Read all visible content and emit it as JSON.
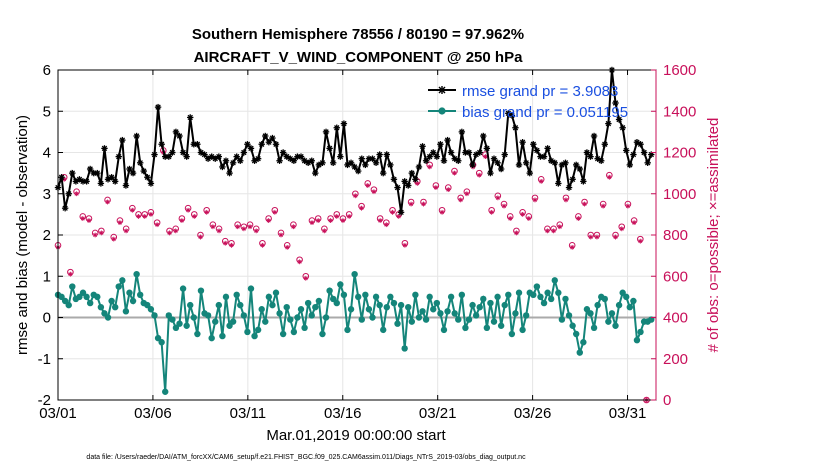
{
  "chart_data": {
    "type": "line",
    "title": "Southern Hemisphere 78556 / 80190 = 97.962%",
    "subtitle": "AIRCRAFT_V_WIND_COMPONENT @ 250 hPa",
    "xlabel": "Mar.01,2019 00:00:00 start",
    "ylabel": "rmse and bias (model - observation)",
    "y2label": "# of obs: o=possible; ×=assimilated",
    "xlim": [
      0,
      31.5
    ],
    "ylim": [
      -2,
      6
    ],
    "y2lim": [
      0,
      1600
    ],
    "x_ticks": [
      0,
      5,
      10,
      15,
      20,
      25,
      30
    ],
    "x_tick_labels": [
      "03/01",
      "03/06",
      "03/11",
      "03/16",
      "03/21",
      "03/26",
      "03/31"
    ],
    "y_ticks": [
      -2,
      -1,
      0,
      1,
      2,
      3,
      4,
      5,
      6
    ],
    "y2_ticks": [
      0,
      200,
      400,
      600,
      800,
      1000,
      1200,
      1400,
      1600
    ],
    "colors": {
      "rmse": "#000000",
      "bias": "#14857a",
      "obs": "#c8105a",
      "legend_text": "#1a4fe0",
      "zero_line": "#aaaaaa"
    },
    "footnote": "data file: /Users/raeder/DAI/ATM_forcXX/CAM6_setup/f.e21.FHIST_BGC.f09_025.CAM6assim.011/Diags_NTrS_2019-03/obs_diag_output.nc",
    "series": [
      {
        "name": "rmse grand pr = 3.9083",
        "values": [
          3.15,
          3.4,
          2.65,
          3.0,
          3.5,
          3.3,
          3.35,
          3.3,
          3.3,
          3.6,
          3.5,
          3.5,
          3.25,
          4.1,
          3.35,
          3.4,
          3.3,
          3.9,
          4.3,
          3.2,
          3.6,
          3.5,
          4.4,
          3.75,
          3.55,
          3.4,
          3.25,
          3.95,
          5.1,
          4.2,
          3.9,
          3.9,
          4.0,
          4.5,
          4.4,
          4.0,
          3.9,
          4.85,
          4.2,
          4.2,
          4.0,
          3.95,
          3.85,
          3.9,
          3.85,
          3.9,
          3.65,
          3.8,
          3.5,
          3.75,
          3.9,
          3.8,
          4.0,
          4.2,
          4.1,
          3.8,
          3.85,
          4.2,
          4.4,
          4.25,
          4.35,
          4.2,
          3.8,
          4.0,
          3.9,
          3.85,
          3.8,
          3.9,
          3.9,
          3.8,
          3.75,
          3.8,
          3.5,
          3.7,
          3.75,
          4.5,
          4.1,
          3.75,
          4.6,
          3.9,
          4.7,
          3.7,
          3.75,
          3.65,
          3.55,
          3.85,
          3.7,
          3.85,
          3.85,
          3.75,
          3.95,
          3.5,
          3.95,
          3.7,
          3.35,
          3.15,
          2.55,
          3.3,
          3.2,
          3.5,
          3.35,
          3.65,
          4.15,
          3.8,
          3.9,
          4.0,
          3.9,
          4.2,
          3.8,
          4.3,
          4.0,
          3.85,
          3.8,
          4.5,
          4.0,
          4.0,
          3.7,
          3.95,
          4.0,
          4.4,
          4.1,
          3.5,
          3.85,
          3.75,
          3.6,
          3.95,
          4.95,
          4.9,
          4.6,
          3.7,
          4.25,
          3.75,
          3.5,
          4.2,
          4.05,
          3.9,
          3.9,
          4.1,
          3.8,
          3.75,
          3.25,
          3.7,
          3.75,
          3.15,
          3.35,
          3.7,
          3.6,
          3.3,
          4.0,
          3.9,
          4.4,
          3.85,
          3.8,
          4.2,
          4.7,
          6.0,
          5.2,
          4.8,
          4.6,
          4.05,
          3.7,
          3.95,
          4.25,
          4.2,
          4.0,
          3.75,
          3.95
        ]
      },
      {
        "name": "bias grand pr = 0.051195",
        "values": [
          0.55,
          0.5,
          0.4,
          0.3,
          0.75,
          0.45,
          0.5,
          0.6,
          0.5,
          0.35,
          0.55,
          0.5,
          0.25,
          0.1,
          0.0,
          0.4,
          0.25,
          0.75,
          0.9,
          0.15,
          0.6,
          0.4,
          1.05,
          0.55,
          0.35,
          0.3,
          0.2,
          0.05,
          -0.5,
          -0.6,
          -1.8,
          0.05,
          -0.05,
          -0.25,
          -0.15,
          0.7,
          -0.2,
          0.3,
          0.0,
          -0.4,
          0.65,
          0.1,
          0.05,
          -0.5,
          -0.1,
          0.3,
          -0.45,
          0.5,
          -0.2,
          -0.1,
          0.55,
          0.3,
          0.05,
          -0.35,
          0.7,
          -0.45,
          -0.3,
          0.2,
          -0.1,
          0.5,
          0.3,
          0.6,
          0.1,
          -0.4,
          0.25,
          -0.05,
          -0.35,
          0.0,
          0.2,
          -0.25,
          0.35,
          0.05,
          0.25,
          0.4,
          -0.4,
          0.0,
          0.65,
          0.45,
          0.35,
          0.8,
          0.55,
          -0.3,
          0.2,
          1.05,
          0.5,
          -0.05,
          0.55,
          0.2,
          0.0,
          0.5,
          0.3,
          -0.3,
          0.25,
          0.5,
          0.35,
          -0.15,
          0.3,
          -0.75,
          0.25,
          -0.1,
          0.55,
          0.0,
          0.15,
          -0.05,
          0.5,
          0.2,
          0.35,
          0.1,
          -0.3,
          0.15,
          0.5,
          0.1,
          -0.05,
          0.55,
          -0.25,
          -0.05,
          0.3,
          0.05,
          0.25,
          0.45,
          -0.25,
          0.35,
          -0.1,
          0.5,
          -0.2,
          0.3,
          0.55,
          -0.4,
          0.1,
          0.6,
          -0.3,
          0.05,
          0.6,
          0.55,
          0.75,
          0.5,
          0.35,
          0.6,
          0.45,
          0.9,
          0.6,
          -0.05,
          0.45,
          0.05,
          -0.2,
          -0.4,
          -0.85,
          -0.6,
          0.2,
          0.1,
          -0.25,
          0.3,
          0.5,
          0.45,
          -0.1,
          0.1,
          -0.2,
          0.3,
          0.6,
          0.5,
          0.25,
          0.4,
          -0.55,
          -0.35,
          -0.1,
          -0.1,
          -0.05
        ]
      },
      {
        "name": "obs possible",
        "values": [
          750,
          1080,
          620,
          1010,
          890,
          880,
          810,
          820,
          970,
          790,
          870,
          830,
          930,
          900,
          900,
          910,
          860,
          1210,
          820,
          830,
          880,
          930,
          900,
          800,
          920,
          850,
          830,
          770,
          760,
          850,
          840,
          850,
          830,
          760,
          880,
          920,
          810,
          750,
          850,
          680,
          600,
          870,
          880,
          830,
          880,
          900,
          880,
          900,
          1000,
          940,
          1050,
          1020,
          880,
          860,
          920,
          900,
          760,
          960,
          1060,
          960,
          1140,
          1040,
          920,
          1030,
          1110,
          980,
          1010,
          1140,
          1100,
          1190,
          920,
          990,
          950,
          890,
          820,
          910,
          890,
          980,
          1070,
          830,
          830,
          850,
          980,
          750,
          890,
          960,
          800,
          800,
          950,
          1090,
          800,
          840,
          950,
          870,
          780,
          0
        ]
      },
      {
        "name": "obs assimilated",
        "values": [
          740,
          1070,
          610,
          1000,
          880,
          870,
          800,
          810,
          960,
          780,
          860,
          820,
          920,
          890,
          890,
          900,
          850,
          1200,
          810,
          820,
          870,
          920,
          890,
          790,
          910,
          840,
          820,
          760,
          750,
          840,
          830,
          840,
          820,
          750,
          870,
          910,
          800,
          740,
          840,
          670,
          590,
          860,
          870,
          820,
          870,
          890,
          870,
          890,
          990,
          930,
          1040,
          1010,
          870,
          850,
          910,
          890,
          750,
          950,
          1050,
          950,
          1130,
          1030,
          910,
          1020,
          1100,
          970,
          1000,
          1130,
          1090,
          1180,
          910,
          980,
          940,
          880,
          810,
          900,
          880,
          970,
          1060,
          820,
          820,
          840,
          970,
          740,
          880,
          950,
          790,
          790,
          940,
          1080,
          790,
          830,
          940,
          860,
          770,
          0
        ]
      }
    ]
  }
}
